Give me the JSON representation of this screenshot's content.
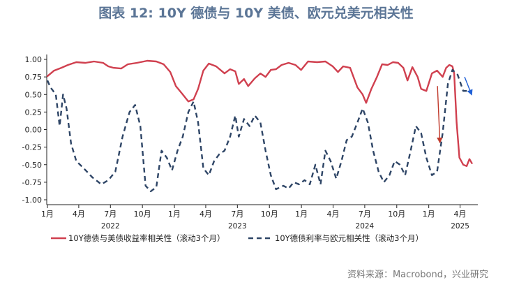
{
  "title": "图表 12: 10Y 德债与 10Y 美债、欧元兑美元相关性",
  "source": "资料来源：Macrobond，兴业研究",
  "colors": {
    "red": "#d0404f",
    "navy": "#2e4566",
    "title": "#5b7596",
    "arrow_red": "#c0392b",
    "arrow_blue": "#1f5fd6"
  },
  "chart_data": {
    "type": "line",
    "ylim": [
      -1.0,
      1.0
    ],
    "yticks": [
      "1.00",
      "0.75",
      "0.50",
      "0.25",
      "0.00",
      "-0.25",
      "-0.50",
      "-0.75",
      "-1.00"
    ],
    "x_range": [
      "2021-12-30",
      "2025-05-22"
    ],
    "xticks": [
      {
        "date": "2022-01-01",
        "label": "1月"
      },
      {
        "date": "2022-04-01",
        "label": "4月"
      },
      {
        "date": "2022-07-01",
        "label": "7月"
      },
      {
        "date": "2022-10-01",
        "label": "10月"
      },
      {
        "date": "2023-01-01",
        "label": "1月"
      },
      {
        "date": "2023-04-01",
        "label": "4月"
      },
      {
        "date": "2023-07-01",
        "label": "7月"
      },
      {
        "date": "2023-10-01",
        "label": "10月"
      },
      {
        "date": "2024-01-01",
        "label": "1月"
      },
      {
        "date": "2024-04-01",
        "label": "4月"
      },
      {
        "date": "2024-07-01",
        "label": "7月"
      },
      {
        "date": "2024-10-01",
        "label": "10月"
      },
      {
        "date": "2025-01-01",
        "label": "1月"
      },
      {
        "date": "2025-04-01",
        "label": "4月"
      }
    ],
    "year_labels": [
      {
        "date": "2022-07-01",
        "label": "2022"
      },
      {
        "date": "2023-07-01",
        "label": "2023"
      },
      {
        "date": "2024-07-01",
        "label": "2024"
      },
      {
        "date": "2025-04-01",
        "label": "2025"
      }
    ],
    "series": [
      {
        "name": "10Y德债与美债收益率相关性（滚动3个月）",
        "style": "solid",
        "color": "#d0404f",
        "points": [
          [
            "2022-01-01",
            0.76
          ],
          [
            "2022-01-20",
            0.84
          ],
          [
            "2022-02-10",
            0.88
          ],
          [
            "2022-03-01",
            0.92
          ],
          [
            "2022-03-25",
            0.96
          ],
          [
            "2022-04-20",
            0.95
          ],
          [
            "2022-05-15",
            0.97
          ],
          [
            "2022-06-10",
            0.95
          ],
          [
            "2022-06-25",
            0.9
          ],
          [
            "2022-07-10",
            0.88
          ],
          [
            "2022-08-01",
            0.87
          ],
          [
            "2022-08-20",
            0.93
          ],
          [
            "2022-09-15",
            0.95
          ],
          [
            "2022-10-15",
            0.98
          ],
          [
            "2022-11-10",
            0.97
          ],
          [
            "2022-12-01",
            0.93
          ],
          [
            "2022-12-20",
            0.82
          ],
          [
            "2023-01-05",
            0.62
          ],
          [
            "2023-01-25",
            0.5
          ],
          [
            "2023-02-10",
            0.4
          ],
          [
            "2023-02-25",
            0.43
          ],
          [
            "2023-03-10",
            0.58
          ],
          [
            "2023-03-25",
            0.84
          ],
          [
            "2023-04-10",
            0.94
          ],
          [
            "2023-05-01",
            0.9
          ],
          [
            "2023-05-25",
            0.8
          ],
          [
            "2023-06-10",
            0.86
          ],
          [
            "2023-06-25",
            0.83
          ],
          [
            "2023-07-05",
            0.65
          ],
          [
            "2023-07-20",
            0.72
          ],
          [
            "2023-08-01",
            0.62
          ],
          [
            "2023-08-20",
            0.73
          ],
          [
            "2023-09-05",
            0.8
          ],
          [
            "2023-09-20",
            0.75
          ],
          [
            "2023-10-05",
            0.85
          ],
          [
            "2023-10-20",
            0.86
          ],
          [
            "2023-11-05",
            0.92
          ],
          [
            "2023-11-25",
            0.95
          ],
          [
            "2023-12-15",
            0.92
          ],
          [
            "2023-12-31",
            0.85
          ],
          [
            "2024-01-20",
            0.97
          ],
          [
            "2024-02-15",
            0.96
          ],
          [
            "2024-03-10",
            0.97
          ],
          [
            "2024-03-31",
            0.9
          ],
          [
            "2024-04-15",
            0.82
          ],
          [
            "2024-04-30",
            0.9
          ],
          [
            "2024-05-20",
            0.88
          ],
          [
            "2024-06-10",
            0.6
          ],
          [
            "2024-06-25",
            0.5
          ],
          [
            "2024-07-05",
            0.38
          ],
          [
            "2024-07-20",
            0.58
          ],
          [
            "2024-08-05",
            0.75
          ],
          [
            "2024-08-20",
            0.93
          ],
          [
            "2024-09-05",
            0.92
          ],
          [
            "2024-09-20",
            0.96
          ],
          [
            "2024-10-05",
            0.95
          ],
          [
            "2024-10-20",
            0.88
          ],
          [
            "2024-11-01",
            0.7
          ],
          [
            "2024-11-15",
            0.89
          ],
          [
            "2024-11-30",
            0.75
          ],
          [
            "2024-12-10",
            0.58
          ],
          [
            "2024-12-25",
            0.55
          ],
          [
            "2025-01-10",
            0.8
          ],
          [
            "2025-01-25",
            0.84
          ],
          [
            "2025-02-10",
            0.75
          ],
          [
            "2025-02-20",
            0.88
          ],
          [
            "2025-03-01",
            0.92
          ],
          [
            "2025-03-10",
            0.9
          ],
          [
            "2025-03-15",
            0.8
          ],
          [
            "2025-03-22",
            0.1
          ],
          [
            "2025-03-30",
            -0.4
          ],
          [
            "2025-04-10",
            -0.5
          ],
          [
            "2025-04-20",
            -0.52
          ],
          [
            "2025-04-28",
            -0.42
          ],
          [
            "2025-05-05",
            -0.48
          ]
        ]
      },
      {
        "name": "10Y德债利率与欧元相关性（滚动3个月）",
        "style": "dashed",
        "color": "#2e4566",
        "points": [
          [
            "2022-01-01",
            0.7
          ],
          [
            "2022-01-10",
            0.6
          ],
          [
            "2022-01-25",
            0.5
          ],
          [
            "2022-02-05",
            0.05
          ],
          [
            "2022-02-15",
            0.5
          ],
          [
            "2022-02-25",
            0.3
          ],
          [
            "2022-03-10",
            -0.2
          ],
          [
            "2022-03-25",
            -0.45
          ],
          [
            "2022-04-15",
            -0.55
          ],
          [
            "2022-05-10",
            -0.68
          ],
          [
            "2022-06-05",
            -0.78
          ],
          [
            "2022-06-25",
            -0.72
          ],
          [
            "2022-07-15",
            -0.6
          ],
          [
            "2022-08-05",
            -0.1
          ],
          [
            "2022-08-25",
            0.25
          ],
          [
            "2022-09-10",
            0.35
          ],
          [
            "2022-09-25",
            0.05
          ],
          [
            "2022-10-10",
            -0.8
          ],
          [
            "2022-10-25",
            -0.88
          ],
          [
            "2022-11-10",
            -0.82
          ],
          [
            "2022-11-25",
            -0.3
          ],
          [
            "2022-12-10",
            -0.4
          ],
          [
            "2022-12-25",
            -0.58
          ],
          [
            "2023-01-10",
            -0.3
          ],
          [
            "2023-01-25",
            -0.1
          ],
          [
            "2023-02-10",
            0.25
          ],
          [
            "2023-02-25",
            0.4
          ],
          [
            "2023-03-10",
            0.1
          ],
          [
            "2023-03-25",
            -0.55
          ],
          [
            "2023-04-10",
            -0.65
          ],
          [
            "2023-04-25",
            -0.45
          ],
          [
            "2023-05-10",
            -0.35
          ],
          [
            "2023-05-25",
            -0.3
          ],
          [
            "2023-06-10",
            -0.1
          ],
          [
            "2023-06-25",
            0.2
          ],
          [
            "2023-07-05",
            -0.1
          ],
          [
            "2023-07-20",
            0.15
          ],
          [
            "2023-08-05",
            0.05
          ],
          [
            "2023-08-20",
            0.2
          ],
          [
            "2023-09-05",
            0.1
          ],
          [
            "2023-09-20",
            -0.3
          ],
          [
            "2023-10-05",
            -0.65
          ],
          [
            "2023-10-20",
            -0.85
          ],
          [
            "2023-11-10",
            -0.8
          ],
          [
            "2023-11-25",
            -0.84
          ],
          [
            "2023-12-10",
            -0.75
          ],
          [
            "2023-12-25",
            -0.78
          ],
          [
            "2024-01-10",
            -0.72
          ],
          [
            "2024-01-25",
            -0.78
          ],
          [
            "2024-02-10",
            -0.5
          ],
          [
            "2024-02-25",
            -0.78
          ],
          [
            "2024-03-10",
            -0.3
          ],
          [
            "2024-03-25",
            -0.45
          ],
          [
            "2024-04-10",
            -0.7
          ],
          [
            "2024-04-25",
            -0.45
          ],
          [
            "2024-05-10",
            -0.15
          ],
          [
            "2024-05-25",
            -0.1
          ],
          [
            "2024-06-10",
            0.1
          ],
          [
            "2024-06-25",
            0.3
          ],
          [
            "2024-07-10",
            0.1
          ],
          [
            "2024-07-25",
            -0.3
          ],
          [
            "2024-08-10",
            -0.6
          ],
          [
            "2024-08-25",
            -0.75
          ],
          [
            "2024-09-10",
            -0.65
          ],
          [
            "2024-09-25",
            -0.45
          ],
          [
            "2024-10-10",
            -0.5
          ],
          [
            "2024-10-25",
            -0.65
          ],
          [
            "2024-11-10",
            -0.3
          ],
          [
            "2024-11-25",
            0.05
          ],
          [
            "2024-12-10",
            -0.05
          ],
          [
            "2024-12-25",
            -0.4
          ],
          [
            "2025-01-10",
            -0.65
          ],
          [
            "2025-01-25",
            -0.6
          ],
          [
            "2025-02-10",
            -0.05
          ],
          [
            "2025-02-25",
            0.65
          ],
          [
            "2025-03-10",
            0.85
          ],
          [
            "2025-03-25",
            0.78
          ],
          [
            "2025-04-10",
            0.55
          ],
          [
            "2025-04-25",
            0.55
          ]
        ]
      }
    ],
    "annotations": [
      {
        "type": "arrow",
        "color": "red",
        "from": [
          "2025-01-26",
          0.62
        ],
        "to": [
          "2025-02-02",
          -0.18
        ]
      },
      {
        "type": "arrow",
        "color": "blue",
        "from": [
          "2025-04-14",
          0.75
        ],
        "to": [
          "2025-05-04",
          0.5
        ]
      }
    ]
  }
}
